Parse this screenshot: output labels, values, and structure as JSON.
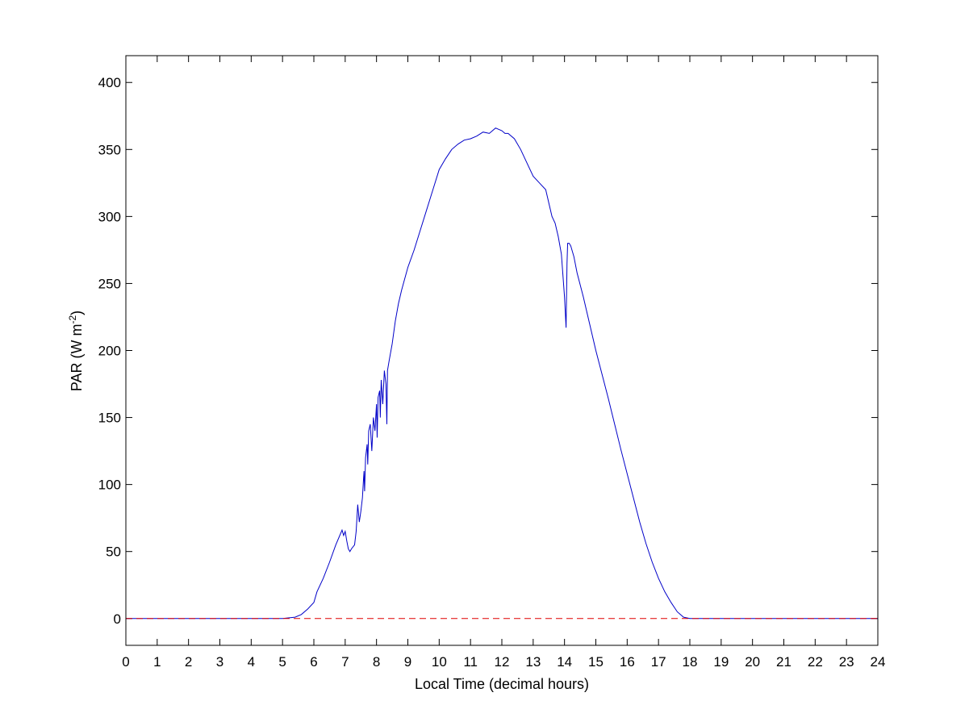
{
  "chart_data": {
    "type": "line",
    "title": "",
    "xlabel": "Local Time (decimal hours)",
    "ylabel": {
      "prefix": "PAR (W m",
      "superscript": "-2",
      "suffix": ")"
    },
    "xlim": [
      0,
      24
    ],
    "ylim": [
      -20,
      420
    ],
    "xticks": [
      0,
      1,
      2,
      3,
      4,
      5,
      6,
      7,
      8,
      9,
      10,
      11,
      12,
      13,
      14,
      15,
      16,
      17,
      18,
      19,
      20,
      21,
      22,
      23,
      24
    ],
    "yticks": [
      0,
      50,
      100,
      150,
      200,
      250,
      300,
      350,
      400
    ],
    "grid": false,
    "legend": "none",
    "series": [
      {
        "color": "#0000c8",
        "style": "solid",
        "x": [
          0,
          5.0,
          5.4,
          5.6,
          5.8,
          6.0,
          6.1,
          6.3,
          6.5,
          6.7,
          6.9,
          6.95,
          7.0,
          7.05,
          7.1,
          7.15,
          7.2,
          7.3,
          7.35,
          7.4,
          7.45,
          7.5,
          7.55,
          7.6,
          7.62,
          7.65,
          7.7,
          7.72,
          7.75,
          7.8,
          7.85,
          7.9,
          7.95,
          8.0,
          8.02,
          8.05,
          8.1,
          8.12,
          8.15,
          8.2,
          8.25,
          8.3,
          8.33,
          8.35,
          8.4,
          8.5,
          8.6,
          8.7,
          8.8,
          9.0,
          9.2,
          9.4,
          9.6,
          9.8,
          10.0,
          10.2,
          10.4,
          10.6,
          10.8,
          11.0,
          11.2,
          11.4,
          11.6,
          11.8,
          12.0,
          12.1,
          12.2,
          12.4,
          12.6,
          12.8,
          13.0,
          13.2,
          13.4,
          13.5,
          13.6,
          13.7,
          13.8,
          13.9,
          14.0,
          14.05,
          14.08,
          14.1,
          14.15,
          14.2,
          14.3,
          14.4,
          14.6,
          14.8,
          15.0,
          15.2,
          15.4,
          15.6,
          15.8,
          16.0,
          16.2,
          16.4,
          16.6,
          16.8,
          17.0,
          17.2,
          17.4,
          17.6,
          17.8,
          18.0,
          18.2,
          18.4,
          18.6,
          18.8,
          24
        ],
        "y": [
          0,
          0,
          1,
          3,
          7,
          12,
          20,
          30,
          42,
          55,
          66,
          62,
          65,
          58,
          52,
          50,
          52,
          55,
          65,
          85,
          72,
          80,
          90,
          110,
          95,
          120,
          130,
          115,
          140,
          145,
          125,
          150,
          140,
          160,
          135,
          165,
          170,
          150,
          178,
          160,
          185,
          175,
          145,
          185,
          192,
          205,
          222,
          235,
          245,
          262,
          275,
          290,
          305,
          320,
          335,
          343,
          350,
          354,
          357,
          358,
          360,
          363,
          362,
          366,
          364,
          362,
          362,
          358,
          350,
          340,
          330,
          325,
          320,
          310,
          300,
          295,
          285,
          272,
          240,
          217,
          265,
          280,
          280,
          278,
          270,
          258,
          240,
          220,
          200,
          182,
          164,
          145,
          126,
          108,
          90,
          72,
          56,
          42,
          30,
          20,
          12,
          5,
          1,
          0,
          0,
          0,
          0,
          0,
          0
        ]
      },
      {
        "color": "#e00000",
        "style": "dashed",
        "x": [
          0,
          24
        ],
        "y": [
          0,
          0
        ]
      }
    ]
  }
}
